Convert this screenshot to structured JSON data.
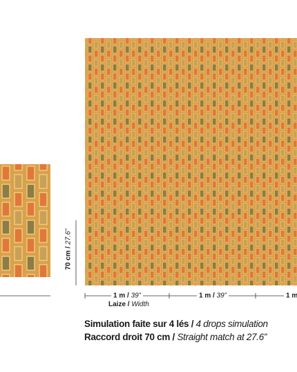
{
  "dimensions": {
    "separator": " / ",
    "height_metric": "70 cm",
    "height_imperial": "27.6”",
    "width_label": "Laize",
    "width_label_en": "Width",
    "panel_widths": [
      {
        "metric": "1 m",
        "imperial": "39”"
      },
      {
        "metric": "1 m",
        "imperial": "39”"
      },
      {
        "metric": "1 m"
      }
    ]
  },
  "caption": {
    "line1": "Simulation faite sur 4 lés",
    "line1_en": "4 drops simulation",
    "line2": "Raccord droit 70 cm",
    "line2_en": "Straight match at 27.6”"
  }
}
